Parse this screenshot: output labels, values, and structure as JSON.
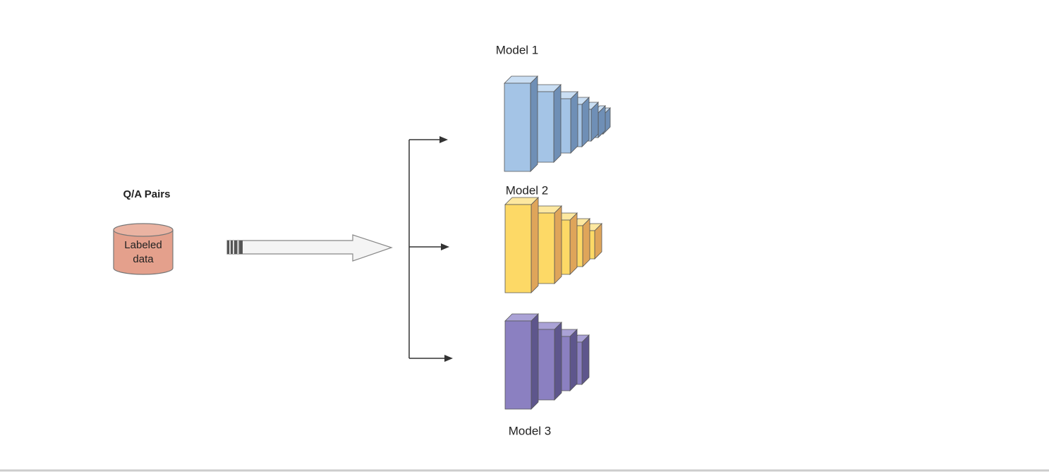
{
  "source": {
    "title": "Q/A Pairs",
    "label_lines": [
      "Labeled",
      "data"
    ]
  },
  "models": [
    {
      "label": "Model 1"
    },
    {
      "label": "Model 2"
    },
    {
      "label": "Model 3"
    }
  ]
}
